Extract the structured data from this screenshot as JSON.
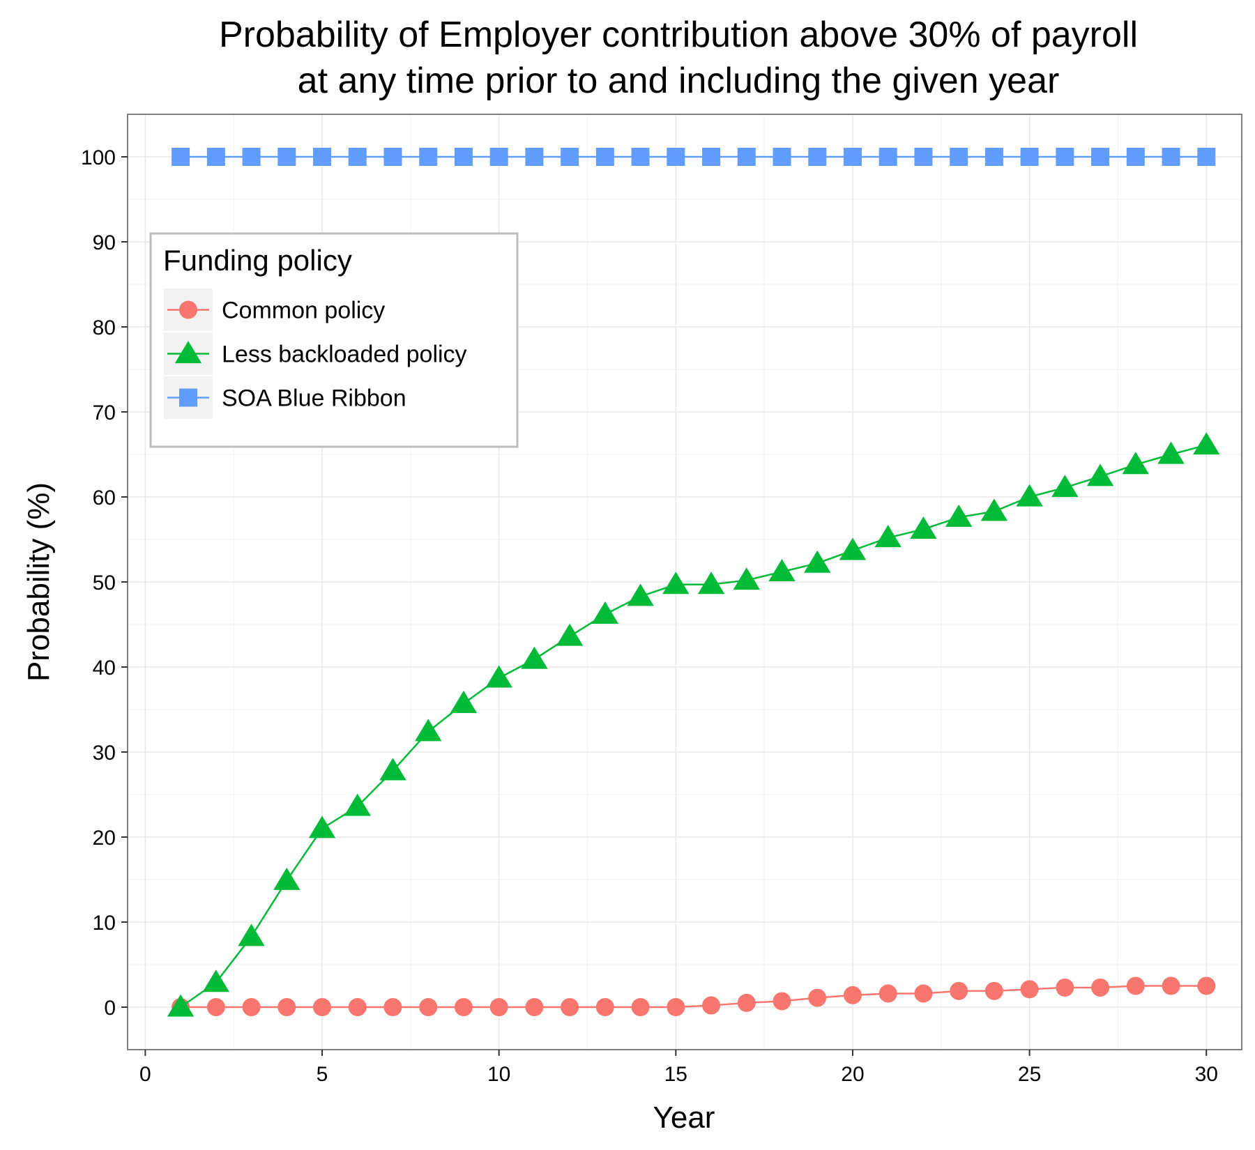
{
  "chart_data": {
    "type": "line",
    "title_line1": "Probability of Employer contribution above 30% of payroll",
    "title_line2": "at any time prior to and including the given year",
    "xlabel": "Year",
    "ylabel": "Probability (%)",
    "xlim": [
      -0.5,
      31.0
    ],
    "ylim": [
      -5,
      105
    ],
    "x_ticks": [
      0,
      5,
      10,
      15,
      20,
      25,
      30
    ],
    "y_ticks": [
      0,
      10,
      20,
      30,
      40,
      50,
      60,
      70,
      80,
      90,
      100
    ],
    "grid": true,
    "legend": {
      "title": "Funding policy",
      "placement": "top-left inside"
    },
    "x": [
      1,
      2,
      3,
      4,
      5,
      6,
      7,
      8,
      9,
      10,
      11,
      12,
      13,
      14,
      15,
      16,
      17,
      18,
      19,
      20,
      21,
      22,
      23,
      24,
      25,
      26,
      27,
      28,
      29,
      30
    ],
    "series": [
      {
        "name": "Common policy",
        "color": "#F8766D",
        "marker": "circle",
        "values": [
          0,
          0,
          0,
          0,
          0,
          0,
          0,
          0,
          0,
          0,
          0,
          0,
          0,
          0,
          0,
          0.2,
          0.5,
          0.7,
          1.1,
          1.4,
          1.6,
          1.6,
          1.9,
          1.9,
          2.1,
          2.3,
          2.3,
          2.5,
          2.5,
          2.5
        ]
      },
      {
        "name": "Less backloaded policy",
        "color": "#00BA38",
        "marker": "triangle",
        "values": [
          0,
          2.9,
          8.3,
          14.9,
          21.0,
          23.6,
          27.8,
          32.4,
          35.7,
          38.7,
          40.9,
          43.6,
          46.2,
          48.3,
          49.7,
          49.7,
          50.2,
          51.2,
          52.2,
          53.7,
          55.2,
          56.2,
          57.6,
          58.3,
          60.0,
          61.1,
          62.4,
          63.8,
          65.0,
          66.1
        ]
      },
      {
        "name": "SOA Blue Ribbon",
        "color": "#619CFF",
        "marker": "square",
        "values": [
          100,
          100,
          100,
          100,
          100,
          100,
          100,
          100,
          100,
          100,
          100,
          100,
          100,
          100,
          100,
          100,
          100,
          100,
          100,
          100,
          100,
          100,
          100,
          100,
          100,
          100,
          100,
          100,
          100,
          100
        ]
      }
    ]
  }
}
